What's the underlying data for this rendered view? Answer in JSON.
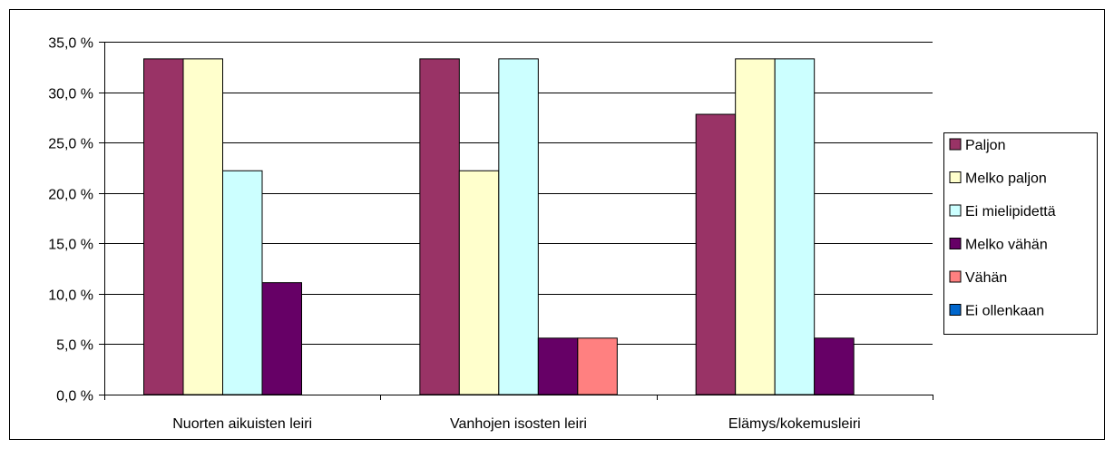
{
  "chart_data": {
    "type": "bar",
    "categories": [
      "Nuorten aikuisten leiri",
      "Vanhojen isosten leiri",
      "Elämys/kokemusleiri"
    ],
    "series": [
      {
        "name": "Paljon",
        "color": "#993366",
        "values": [
          33.3,
          33.3,
          27.8
        ]
      },
      {
        "name": "Melko paljon",
        "color": "#ffffcc",
        "values": [
          33.3,
          22.2,
          33.3
        ]
      },
      {
        "name": "Ei mielipidettä",
        "color": "#ccffff",
        "values": [
          22.2,
          33.3,
          33.3
        ]
      },
      {
        "name": "Melko vähän",
        "color": "#660066",
        "values": [
          11.1,
          5.6,
          5.6
        ]
      },
      {
        "name": "Vähän",
        "color": "#ff8080",
        "values": [
          0,
          5.6,
          0
        ]
      },
      {
        "name": "Ei ollenkaan",
        "color": "#0066cc",
        "values": [
          0,
          0,
          0
        ]
      }
    ],
    "y_ticks": [
      "0,0 %",
      "5,0 %",
      "10,0 %",
      "15,0 %",
      "20,0 %",
      "25,0 %",
      "30,0 %",
      "35,0 %"
    ],
    "ylim": [
      0,
      35
    ],
    "ystep": 5,
    "grid": true,
    "legend": "right"
  }
}
